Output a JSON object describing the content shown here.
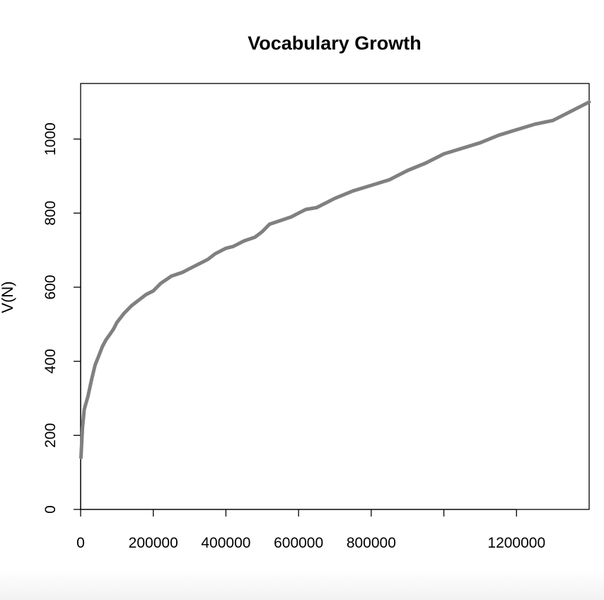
{
  "chart_data": {
    "type": "line",
    "title": "Vocabulary Growth",
    "xlabel": "N",
    "ylabel": "V(N)",
    "xlim": [
      0,
      1400000
    ],
    "ylim": [
      0,
      1150
    ],
    "grid": false,
    "legend": "none",
    "line_color": "#808080",
    "x_ticks": [
      0,
      200000,
      400000,
      600000,
      800000,
      1000000,
      1200000
    ],
    "x_tick_labels": [
      "0",
      "200000",
      "400000",
      "600000",
      "800000",
      "",
      "1200000"
    ],
    "y_ticks": [
      0,
      200,
      400,
      600,
      800,
      1000
    ],
    "y_tick_labels": [
      "0",
      "200",
      "400",
      "600",
      "800",
      "1000"
    ],
    "series": [
      {
        "x": [
          1000,
          5000,
          10000,
          20000,
          30000,
          40000,
          50000,
          60000,
          70000,
          80000,
          90000,
          100000,
          120000,
          140000,
          160000,
          180000,
          200000,
          220000,
          250000,
          280000,
          300000,
          330000,
          350000,
          370000,
          400000,
          420000,
          450000,
          480000,
          500000,
          520000,
          550000,
          580000,
          600000,
          620000,
          650000,
          700000,
          750000,
          800000,
          850000,
          900000,
          950000,
          1000000,
          1050000,
          1100000,
          1150000,
          1200000,
          1250000,
          1300000,
          1350000,
          1400000
        ],
        "y": [
          140,
          220,
          270,
          305,
          350,
          390,
          415,
          440,
          458,
          472,
          486,
          505,
          530,
          550,
          565,
          580,
          590,
          610,
          630,
          640,
          650,
          665,
          675,
          690,
          705,
          710,
          725,
          735,
          750,
          770,
          780,
          790,
          800,
          810,
          815,
          840,
          860,
          875,
          890,
          915,
          935,
          960,
          975,
          990,
          1010,
          1025,
          1040,
          1050,
          1075,
          1100
        ]
      }
    ]
  }
}
